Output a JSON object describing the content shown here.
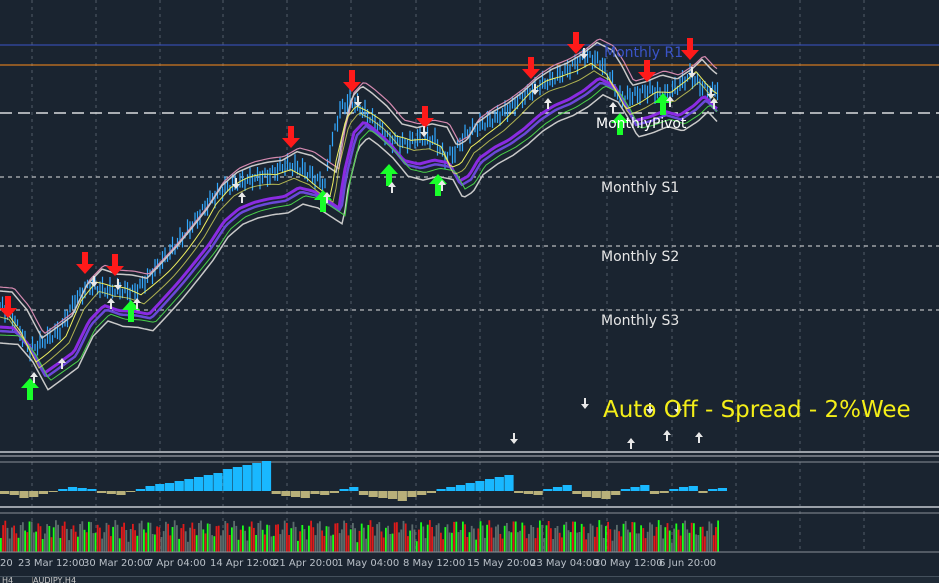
{
  "colors": {
    "background": "#1a2430",
    "grid": "#6b7480",
    "price_bar": "#32a8ff",
    "envelope": "#c9c9c9",
    "envelope_top": "#d58ab0",
    "ma_violet": "#8a2be2",
    "ma_purple": "#6a48d8",
    "ma_yellow": "#f0f060",
    "ma_green": "#4ad04a",
    "arrow_down": "#ff1a1a",
    "arrow_up": "#19ff2a",
    "small_arrow": "#e8e8e8",
    "hist_pos": "#19b8ff",
    "hist_neg": "#b8b07a",
    "vol_green": "#1aff1a",
    "vol_red": "#e01a1a",
    "vol_gray": "#5c6c6c",
    "r1_line": "#3a54c8",
    "orange_line": "#ff8c1a",
    "banner": "#f4ee18"
  },
  "levels": {
    "r1": "Monthly R1",
    "pivot": "MonthlyPivot",
    "s1": "Monthly S1",
    "s2": "Monthly S2",
    "s3": "Monthly S3"
  },
  "banner_text": "Auto Off - Spread - 2%Wee",
  "dates": [
    "20",
    "23 Mar 12:00",
    "30 Mar 20:00",
    "7 Apr 04:00",
    "14 Apr 12:00",
    "21 Apr 20:00",
    "1 May 04:00",
    "8 May 12:00",
    "15 May 20:00",
    "23 May 04:00",
    "30 May 12:00",
    "6 Jun 20:00"
  ],
  "tabs": [
    "H4",
    "AUDJPY,H4"
  ]
}
